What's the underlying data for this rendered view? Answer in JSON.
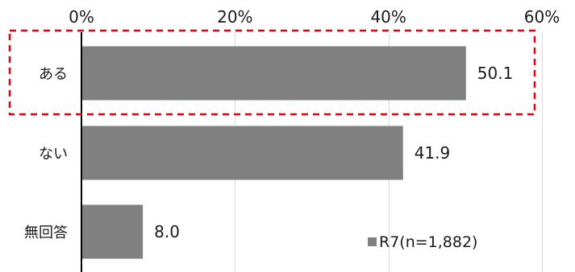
{
  "chart_data": {
    "type": "bar",
    "orientation": "horizontal",
    "categories": [
      "ある",
      "ない",
      "無回答"
    ],
    "series": [
      {
        "name": "R7(n=1,882)",
        "values": [
          50.1,
          41.9,
          8.0
        ],
        "value_labels": [
          "50.1",
          "41.9",
          "8.0"
        ],
        "color": "#808080"
      }
    ],
    "xlim": [
      0,
      60
    ],
    "x_ticks": [
      "0%",
      "20%",
      "40%",
      "60%"
    ],
    "tick_values": [
      0,
      20,
      40,
      60
    ],
    "axis_position": "top",
    "grid": true,
    "gridline_color": "#d9d9d9",
    "highlight": {
      "category": "ある",
      "style": "dashed",
      "color": "#e3000f"
    },
    "legend": {
      "position": "bottom-right",
      "entries": [
        "R7(n=1,882)"
      ]
    }
  }
}
